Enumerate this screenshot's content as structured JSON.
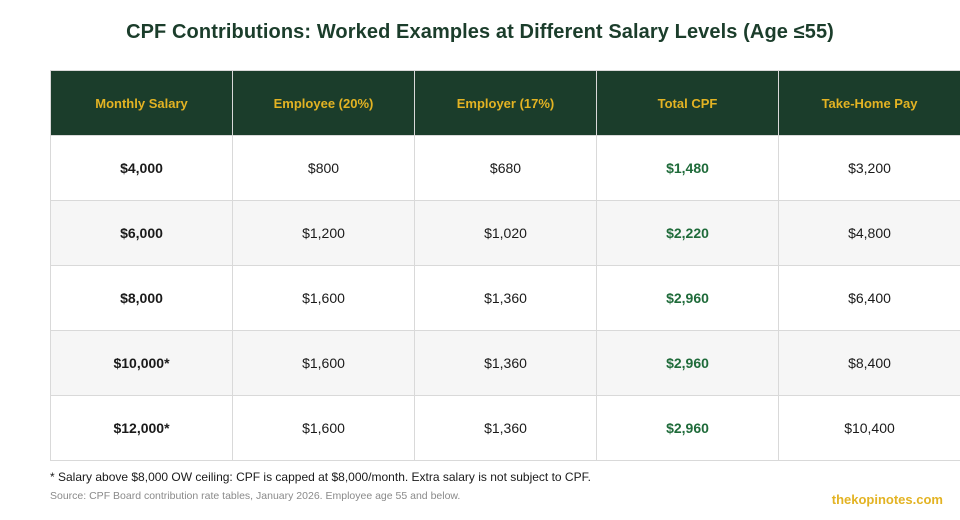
{
  "title": "CPF Contributions: Worked Examples at Different Salary Levels (Age ≤55)",
  "table": {
    "headers": [
      "Monthly Salary",
      "Employee (20%)",
      "Employer (17%)",
      "Total CPF",
      "Take-Home Pay"
    ],
    "rows": [
      [
        "$4,000",
        "$800",
        "$680",
        "$1,480",
        "$3,200"
      ],
      [
        "$6,000",
        "$1,200",
        "$1,020",
        "$2,220",
        "$4,800"
      ],
      [
        "$8,000",
        "$1,600",
        "$1,360",
        "$2,960",
        "$6,400"
      ],
      [
        "$10,000*",
        "$1,600",
        "$1,360",
        "$2,960",
        "$8,400"
      ],
      [
        "$12,000*",
        "$1,600",
        "$1,360",
        "$2,960",
        "$10,400"
      ]
    ]
  },
  "footnote": "* Salary above $8,000 OW ceiling: CPF is capped at $8,000/month. Extra salary is not subject to CPF.",
  "source": "Source: CPF Board contribution rate tables, January 2026. Employee age 55 and below.",
  "brand": "thekopinotes.com",
  "colors": {
    "header_bg": "#1b3d2b",
    "header_text": "#e3b323",
    "total_text": "#1f6b3a",
    "brand": "#e3b323"
  }
}
